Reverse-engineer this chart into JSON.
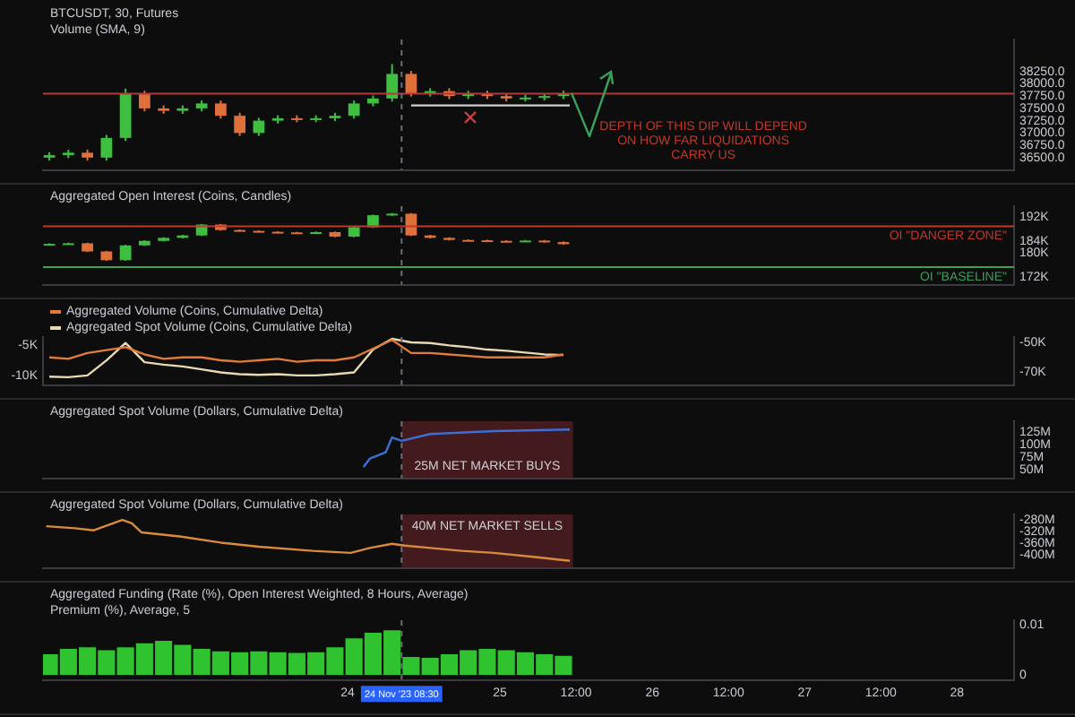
{
  "chart_data": [
    {
      "type": "candlestick",
      "title": "BTCUSDT, 30, Futures",
      "annotations": [
        "Volume (SMA, 9)",
        "DEPTH OF THIS DIP WILL DEPEND ON HOW FAR LIQUIDATIONS CARRY US"
      ],
      "x": [
        "2023-11-22T01:00",
        "2023-11-22T04:00",
        "2023-11-22T07:00",
        "2023-11-22T10:00",
        "2023-11-22T13:00",
        "2023-11-22T16:00",
        "2023-11-22T19:00",
        "2023-11-22T22:00",
        "2023-11-23T01:00",
        "2023-11-23T04:00",
        "2023-11-23T07:00",
        "2023-11-23T10:00",
        "2023-11-23T13:00",
        "2023-11-23T16:00",
        "2023-11-23T19:00",
        "2023-11-23T22:00",
        "2023-11-24T01:00",
        "2023-11-24T04:00",
        "2023-11-24T07:00",
        "2023-11-24T10:00",
        "2023-11-24T13:00",
        "2023-11-24T16:00",
        "2023-11-24T19:00",
        "2023-11-24T22:00",
        "2023-11-25T01:00",
        "2023-11-25T04:00",
        "2023-11-25T07:00",
        "2023-11-25T10:00"
      ],
      "ohlc": [
        [
          36500,
          36610,
          36440,
          36550
        ],
        [
          36550,
          36660,
          36490,
          36600
        ],
        [
          36600,
          36660,
          36440,
          36500
        ],
        [
          36500,
          36960,
          36440,
          36900
        ],
        [
          36900,
          37900,
          36840,
          37800
        ],
        [
          37800,
          37860,
          37440,
          37500
        ],
        [
          37500,
          37560,
          37390,
          37450
        ],
        [
          37450,
          37560,
          37390,
          37500
        ],
        [
          37500,
          37660,
          37440,
          37600
        ],
        [
          37600,
          37660,
          37290,
          37350
        ],
        [
          37350,
          37410,
          36940,
          37000
        ],
        [
          37000,
          37310,
          36940,
          37250
        ],
        [
          37250,
          37360,
          37190,
          37300
        ],
        [
          37300,
          37360,
          37220,
          37280
        ],
        [
          37280,
          37360,
          37220,
          37300
        ],
        [
          37300,
          37410,
          37240,
          37350
        ],
        [
          37350,
          37660,
          37290,
          37600
        ],
        [
          37600,
          37760,
          37540,
          37700
        ],
        [
          37700,
          38400,
          37640,
          38200
        ],
        [
          38200,
          38260,
          37740,
          37800
        ],
        [
          37800,
          37910,
          37740,
          37850
        ],
        [
          37850,
          37910,
          37690,
          37750
        ],
        [
          37750,
          37860,
          37690,
          37800
        ],
        [
          37800,
          37860,
          37690,
          37750
        ],
        [
          37750,
          37810,
          37640,
          37700
        ],
        [
          37700,
          37780,
          37640,
          37720
        ],
        [
          37720,
          37810,
          37660,
          37750
        ],
        [
          37750,
          37860,
          37690,
          37800
        ]
      ],
      "colors": [
        "#3fbf3f",
        "#3fbf3f",
        "#e0703a",
        "#3fbf3f",
        "#3fbf3f",
        "#e0703a",
        "#e0703a",
        "#3fbf3f",
        "#3fbf3f",
        "#e0703a",
        "#e0703a",
        "#3fbf3f",
        "#3fbf3f",
        "#e0703a",
        "#3fbf3f",
        "#3fbf3f",
        "#3fbf3f",
        "#3fbf3f",
        "#3fbf3f",
        "#e0703a",
        "#3fbf3f",
        "#e0703a",
        "#3fbf3f",
        "#e0703a",
        "#e0703a",
        "#3fbf3f",
        "#3fbf3f",
        "#3fbf3f"
      ],
      "series": [
        {
          "type": "line",
          "x": [
            "2023-11-24T10:00",
            "2023-11-25T11:00"
          ],
          "values": [
            37560,
            37560
          ],
          "color": "#cfcfcf"
        }
      ],
      "ref_lines": [
        {
          "axis": "y",
          "value": 37800,
          "color": "#b03a3a"
        },
        {
          "axis": "x",
          "value": "2023-11-24T08:30",
          "color": "#6b6e76",
          "line_style": "dashed"
        }
      ],
      "xlim": [
        "2023-11-22T00:00",
        "2023-11-28T09:00"
      ],
      "ylim": [
        36250,
        38900
      ],
      "yticks": [
        {
          "value": 36500,
          "label": "36500.0"
        },
        {
          "value": 36750,
          "label": "36750.0"
        },
        {
          "value": 37000,
          "label": "37000.0"
        },
        {
          "value": 37250,
          "label": "37250.0"
        },
        {
          "value": 37500,
          "label": "37500.0"
        },
        {
          "value": 37750,
          "label": "37750.0"
        },
        {
          "value": 38000,
          "label": "38000.0"
        },
        {
          "value": 38250,
          "label": "38250.0"
        }
      ],
      "tick_labels": "y"
    },
    {
      "type": "candlestick",
      "title": "Aggregated Open Interest (Coins, Candles)",
      "x": [
        "2023-11-22T01:00",
        "2023-11-22T04:00",
        "2023-11-22T07:00",
        "2023-11-22T10:00",
        "2023-11-22T13:00",
        "2023-11-22T16:00",
        "2023-11-22T19:00",
        "2023-11-22T22:00",
        "2023-11-23T01:00",
        "2023-11-23T04:00",
        "2023-11-23T07:00",
        "2023-11-23T10:00",
        "2023-11-23T13:00",
        "2023-11-23T16:00",
        "2023-11-23T19:00",
        "2023-11-23T22:00",
        "2023-11-24T01:00",
        "2023-11-24T04:00",
        "2023-11-24T07:00",
        "2023-11-24T10:00",
        "2023-11-24T13:00",
        "2023-11-24T16:00",
        "2023-11-24T19:00",
        "2023-11-24T22:00",
        "2023-11-25T01:00",
        "2023-11-25T04:00",
        "2023-11-25T07:00",
        "2023-11-25T10:00"
      ],
      "ohlc": [
        [
          183.0,
          183.2,
          182.8,
          183.0
        ],
        [
          183.0,
          183.4,
          182.8,
          183.2
        ],
        [
          183.2,
          183.4,
          180.3,
          180.5
        ],
        [
          180.5,
          180.7,
          177.4,
          177.6
        ],
        [
          177.6,
          182.7,
          177.4,
          182.5
        ],
        [
          182.5,
          184.2,
          182.3,
          184.0
        ],
        [
          184.0,
          185.2,
          183.8,
          185.0
        ],
        [
          185.0,
          186.0,
          184.8,
          185.8
        ],
        [
          185.8,
          189.6,
          185.6,
          189.4
        ],
        [
          189.4,
          189.6,
          187.4,
          187.6
        ],
        [
          187.6,
          187.8,
          187.1,
          187.3
        ],
        [
          187.3,
          187.5,
          186.8,
          187.0
        ],
        [
          187.0,
          187.2,
          186.6,
          186.8
        ],
        [
          186.8,
          187.0,
          186.4,
          186.6
        ],
        [
          186.6,
          187.1,
          186.4,
          186.9
        ],
        [
          186.9,
          187.1,
          185.2,
          185.4
        ],
        [
          185.4,
          188.7,
          185.2,
          188.5
        ],
        [
          188.5,
          192.7,
          188.3,
          192.5
        ],
        [
          192.5,
          193.2,
          192.3,
          193.0
        ],
        [
          193.0,
          193.2,
          185.6,
          185.8
        ],
        [
          185.8,
          186.0,
          184.8,
          185.0
        ],
        [
          185.0,
          185.2,
          184.1,
          184.3
        ],
        [
          184.3,
          184.5,
          184.0,
          184.2
        ],
        [
          184.2,
          184.4,
          183.8,
          184.0
        ],
        [
          184.0,
          184.2,
          183.7,
          183.9
        ],
        [
          183.9,
          184.3,
          183.7,
          184.1
        ],
        [
          184.1,
          184.3,
          183.4,
          183.6
        ],
        [
          183.6,
          183.8,
          182.7,
          182.9
        ]
      ],
      "colors": [
        "#3fbf3f",
        "#3fbf3f",
        "#e0703a",
        "#e0703a",
        "#3fbf3f",
        "#3fbf3f",
        "#3fbf3f",
        "#3fbf3f",
        "#3fbf3f",
        "#e0703a",
        "#e0703a",
        "#e0703a",
        "#e0703a",
        "#e0703a",
        "#3fbf3f",
        "#e0703a",
        "#3fbf3f",
        "#3fbf3f",
        "#3fbf3f",
        "#e0703a",
        "#e0703a",
        "#e0703a",
        "#e0703a",
        "#e0703a",
        "#e0703a",
        "#3fbf3f",
        "#e0703a",
        "#e0703a"
      ],
      "ref_lines": [
        {
          "axis": "y",
          "value": 188.8,
          "label": "OI \"DANGER ZONE\"",
          "color": "#c0392b"
        },
        {
          "axis": "y",
          "value": 175.3,
          "label": "OI \"BASELINE\"",
          "color": "#3aa05a"
        },
        {
          "axis": "x",
          "value": "2023-11-24T08:30",
          "color": "#6b6e76",
          "line_style": "dashed"
        }
      ],
      "xlim": [
        "2023-11-22T00:00",
        "2023-11-28T09:00"
      ],
      "ylim": [
        169.5,
        195.5
      ],
      "yticks": [
        {
          "value": 172,
          "label": "172K"
        },
        {
          "value": 180,
          "label": "180K"
        },
        {
          "value": 184,
          "label": "184K"
        },
        {
          "value": 192,
          "label": "192K"
        }
      ],
      "tick_labels": "y"
    },
    {
      "type": "line",
      "legend": "top left",
      "x": [
        "2023-11-22T01:00",
        "2023-11-22T04:00",
        "2023-11-22T07:00",
        "2023-11-22T10:00",
        "2023-11-22T13:00",
        "2023-11-22T16:00",
        "2023-11-22T19:00",
        "2023-11-22T22:00",
        "2023-11-23T01:00",
        "2023-11-23T04:00",
        "2023-11-23T07:00",
        "2023-11-23T10:00",
        "2023-11-23T13:00",
        "2023-11-23T16:00",
        "2023-11-23T19:00",
        "2023-11-23T22:00",
        "2023-11-24T01:00",
        "2023-11-24T04:00",
        "2023-11-24T07:00",
        "2023-11-24T10:00",
        "2023-11-24T13:00",
        "2023-11-24T16:00",
        "2023-11-24T19:00",
        "2023-11-24T22:00",
        "2023-11-25T01:00",
        "2023-11-25T04:00",
        "2023-11-25T07:00",
        "2023-11-25T10:00"
      ],
      "series": [
        {
          "name": "Aggregated Volume (Coins, Cumulative Delta)",
          "color": "#e07b39",
          "values": [
            -60,
            -61,
            -57,
            -55,
            -53,
            -58,
            -61,
            -60,
            -60,
            -62,
            -63,
            -62,
            -61,
            -63,
            -62,
            -62,
            -60,
            -54,
            -48,
            -57,
            -57,
            -58,
            -59,
            -60,
            -60,
            -60,
            -60,
            -58
          ]
        },
        {
          "name": "Aggregated Spot Volume (Coins, Cumulative Delta)",
          "color": "#e8d9b0",
          "axis": "y2",
          "values": [
            -10.2,
            -10.3,
            -10.0,
            -7.5,
            -4.6,
            -7.8,
            -8.2,
            -8.5,
            -9.0,
            -9.5,
            -9.8,
            -9.9,
            -9.8,
            -10.0,
            -10.0,
            -9.8,
            -9.5,
            -5.7,
            -3.9,
            -4.5,
            -4.6,
            -5.0,
            -5.3,
            -5.7,
            -5.9,
            -6.2,
            -6.5,
            -6.6
          ]
        }
      ],
      "ref_lines": [
        {
          "axis": "x",
          "value": "2023-11-24T08:30",
          "color": "#6b6e76",
          "line_style": "dashed"
        }
      ],
      "xlim": [
        "2023-11-22T00:00",
        "2023-11-28T09:00"
      ],
      "ylim": [
        -79,
        -46
      ],
      "yticks": [
        {
          "value": -50,
          "label": "-50K"
        },
        {
          "value": -70,
          "label": "-70K"
        }
      ],
      "y2lim": [
        -11.6,
        -3.6
      ],
      "y2ticks": [
        {
          "value": -5,
          "label": "-5K"
        },
        {
          "value": -10,
          "label": "-10K"
        }
      ],
      "tick_labels": "y"
    },
    {
      "type": "line",
      "title": "Aggregated Spot Volume (Dollars, Cumulative Delta)",
      "series": [
        {
          "color": "#3d6fd6",
          "x": [
            "2023-11-24T02:30",
            "2023-11-24T03:30",
            "2023-11-24T06:00",
            "2023-11-24T07:00",
            "2023-11-24T08:30",
            "2023-11-24T13:00",
            "2023-11-24T23:00",
            "2023-11-25T11:00"
          ],
          "values": [
            55,
            72,
            85,
            115,
            108,
            122,
            128,
            131
          ]
        }
      ],
      "bands": [
        {
          "axis": "x",
          "from": "2023-11-24T08:30",
          "to": "2023-11-25T11:30",
          "label": "25M NET MARKET BUYS",
          "color": "#7a2a30"
        }
      ],
      "ref_lines": [
        {
          "axis": "x",
          "value": "2023-11-24T08:30",
          "color": "#6b6e76",
          "line_style": "dashed"
        }
      ],
      "xlim": [
        "2023-11-22T00:00",
        "2023-11-28T09:00"
      ],
      "ylim": [
        32,
        148
      ],
      "yticks": [
        {
          "value": 50,
          "label": "50M"
        },
        {
          "value": 75,
          "label": "75M"
        },
        {
          "value": 100,
          "label": "100M"
        },
        {
          "value": 125,
          "label": "125M"
        }
      ],
      "tick_labels": "y"
    },
    {
      "type": "line",
      "title": "Aggregated Spot Volume (Dollars, Cumulative Delta)",
      "series": [
        {
          "color": "#d98a3a",
          "x": [
            "2023-11-22T00:30",
            "2023-11-22T05:00",
            "2023-11-22T08:00",
            "2023-11-22T12:30",
            "2023-11-22T14:00",
            "2023-11-22T15:30",
            "2023-11-22T21:30",
            "2023-11-23T04:00",
            "2023-11-23T10:00",
            "2023-11-23T18:30",
            "2023-11-24T00:30",
            "2023-11-24T03:30",
            "2023-11-24T07:00",
            "2023-11-24T09:00",
            "2023-11-24T13:00",
            "2023-11-24T18:00",
            "2023-11-24T23:00",
            "2023-11-25T05:30",
            "2023-11-25T11:00"
          ],
          "values": [
            -301,
            -308,
            -315,
            -280,
            -291,
            -322,
            -336,
            -357,
            -371,
            -385,
            -392,
            -375,
            -361,
            -367,
            -375,
            -385,
            -392,
            -406,
            -419
          ]
        }
      ],
      "bands": [
        {
          "axis": "x",
          "from": "2023-11-24T08:30",
          "to": "2023-11-25T11:30",
          "label": "40M NET MARKET SELLS",
          "color": "#7a2a30"
        }
      ],
      "ref_lines": [
        {
          "axis": "x",
          "value": "2023-11-24T08:30",
          "color": "#6b6e76",
          "line_style": "dashed"
        }
      ],
      "xlim": [
        "2023-11-22T00:00",
        "2023-11-28T09:00"
      ],
      "ylim": [
        -443,
        -261
      ],
      "yticks": [
        {
          "value": -280,
          "label": "-280M"
        },
        {
          "value": -320,
          "label": "-320M"
        },
        {
          "value": -360,
          "label": "-360M"
        },
        {
          "value": -400,
          "label": "-400M"
        }
      ],
      "tick_labels": "y"
    },
    {
      "type": "bar",
      "title": "Aggregated Funding (Rate (%), Open Interest Weighted, 8 Hours, Average)",
      "annotations": [
        "Premium (%), Average, 5"
      ],
      "x": [
        "2023-11-22T01:00",
        "2023-11-22T04:00",
        "2023-11-22T07:00",
        "2023-11-22T10:00",
        "2023-11-22T13:00",
        "2023-11-22T16:00",
        "2023-11-22T19:00",
        "2023-11-22T22:00",
        "2023-11-23T01:00",
        "2023-11-23T04:00",
        "2023-11-23T07:00",
        "2023-11-23T10:00",
        "2023-11-23T13:00",
        "2023-11-23T16:00",
        "2023-11-23T19:00",
        "2023-11-23T22:00",
        "2023-11-24T01:00",
        "2023-11-24T04:00",
        "2023-11-24T07:00",
        "2023-11-24T10:00",
        "2023-11-24T13:00",
        "2023-11-24T16:00",
        "2023-11-24T19:00",
        "2023-11-24T22:00",
        "2023-11-25T01:00",
        "2023-11-25T04:00",
        "2023-11-25T07:00",
        "2023-11-25T10:00"
      ],
      "values": [
        0.0041,
        0.0052,
        0.0055,
        0.0049,
        0.0055,
        0.0063,
        0.0068,
        0.006,
        0.0052,
        0.0047,
        0.0045,
        0.0047,
        0.0045,
        0.0044,
        0.0045,
        0.0055,
        0.0073,
        0.0084,
        0.0089,
        0.0036,
        0.0034,
        0.0041,
        0.0049,
        0.0052,
        0.0049,
        0.0045,
        0.0041,
        0.0038
      ],
      "color": "#2fc42f",
      "ref_lines": [
        {
          "axis": "x",
          "value": "2023-11-24T08:30",
          "label": "24 Nov '23 08:30",
          "color": "#6b6e76",
          "line_style": "dashed"
        }
      ],
      "xlim": [
        "2023-11-22T00:00",
        "2023-11-28T09:00"
      ],
      "xticks": [
        {
          "value": "2023-11-24",
          "label": "24"
        },
        {
          "value": "2023-11-25",
          "label": "25"
        },
        {
          "value": "2023-11-25T12:00",
          "label": "12:00"
        },
        {
          "value": "2023-11-26",
          "label": "26"
        },
        {
          "value": "2023-11-26T12:00",
          "label": "12:00"
        },
        {
          "value": "2023-11-27",
          "label": "27"
        },
        {
          "value": "2023-11-27T12:00",
          "label": "12:00"
        },
        {
          "value": "2023-11-28",
          "label": "28"
        }
      ],
      "ylim": [
        -0.0011,
        0.0109
      ],
      "yticks": [
        0,
        0.01
      ]
    }
  ]
}
